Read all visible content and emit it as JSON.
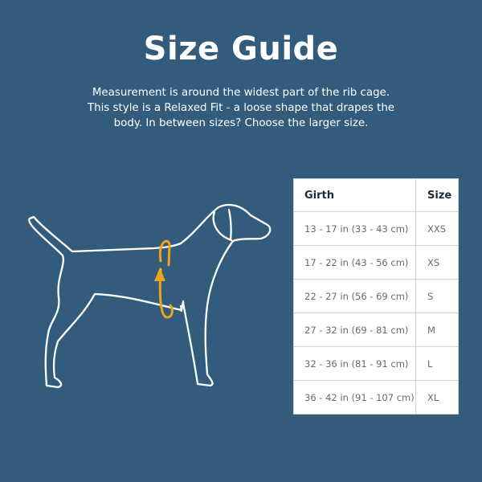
{
  "title": "Size Guide",
  "description": [
    "Measurement is around the widest part of the rib cage.",
    "This style is a Relaxed Fit - a loose shape that drapes the",
    "body. In between sizes? Choose the larger size."
  ],
  "illustration": {
    "icon": "dog-outline-with-girth-arrow-icon",
    "outline_color": "#ffffff",
    "accent_color": "#f0a41a"
  },
  "table": {
    "headers": {
      "girth": "Girth",
      "size": "Size"
    },
    "rows": [
      {
        "girth": "13 - 17 in (33 - 43 cm)",
        "size": "XXS"
      },
      {
        "girth": "17 - 22 in (43 - 56 cm)",
        "size": "XS"
      },
      {
        "girth": "22 - 27 in (56 - 69 cm)",
        "size": "S"
      },
      {
        "girth": "27 - 32 in (69 - 81 cm)",
        "size": "M"
      },
      {
        "girth": "32 - 36 in (81 - 91 cm)",
        "size": "L"
      },
      {
        "girth": "36 - 42 in (91 - 107 cm)",
        "size": "XL"
      }
    ]
  },
  "colors": {
    "background": "#335b7c"
  }
}
